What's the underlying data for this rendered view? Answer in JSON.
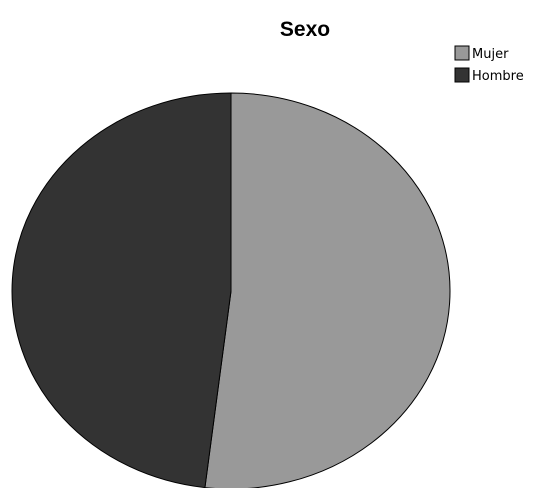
{
  "chart_data": {
    "type": "pie",
    "title": "Sexo",
    "legend_position": "top-right",
    "start_angle_deg": 0,
    "direction": "clockwise",
    "slices": [
      {
        "label": "Mujer",
        "value": 51.9,
        "color": "#999999"
      },
      {
        "label": "Hombre",
        "value": 48.1,
        "color": "#333333"
      }
    ],
    "outline_color": "#000000"
  }
}
